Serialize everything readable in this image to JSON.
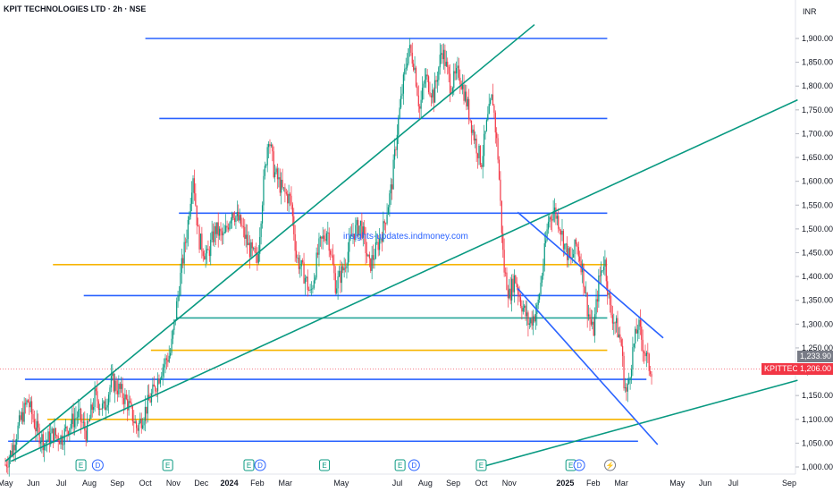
{
  "header": {
    "title": "KPIT TECHNOLOGIES LTD · 2h · NSE",
    "watermark": "insights-updates.indmoney.com"
  },
  "chart_data": {
    "type": "candlestick",
    "currency": "INR",
    "y_ticks": [
      "1,900.00",
      "1,850.00",
      "1,800.00",
      "1,750.00",
      "1,700.00",
      "1,650.00",
      "1,600.00",
      "1,550.00",
      "1,500.00",
      "1,450.00",
      "1,400.00",
      "1,350.00",
      "1,300.00",
      "1,250.00",
      "1,200.00",
      "1,150.00",
      "1,100.00",
      "1,050.00",
      "1,000.00"
    ],
    "y_range": [
      993,
      1930
    ],
    "x_ticks": [
      {
        "label": "May",
        "x": 0.0,
        "bold": false
      },
      {
        "label": "Jun",
        "x": 1.0,
        "bold": false
      },
      {
        "label": "Jul",
        "x": 2.0,
        "bold": false
      },
      {
        "label": "Aug",
        "x": 3.0,
        "bold": false
      },
      {
        "label": "Sep",
        "x": 4.0,
        "bold": false
      },
      {
        "label": "Oct",
        "x": 5.0,
        "bold": false
      },
      {
        "label": "Nov",
        "x": 6.0,
        "bold": false
      },
      {
        "label": "Dec",
        "x": 7.0,
        "bold": false
      },
      {
        "label": "2024",
        "x": 8.0,
        "bold": true
      },
      {
        "label": "Feb",
        "x": 9.0,
        "bold": false
      },
      {
        "label": "Mar",
        "x": 10.0,
        "bold": false
      },
      {
        "label": "May",
        "x": 12.0,
        "bold": false
      },
      {
        "label": "Jul",
        "x": 14.0,
        "bold": false
      },
      {
        "label": "Aug",
        "x": 15.0,
        "bold": false
      },
      {
        "label": "Sep",
        "x": 16.0,
        "bold": false
      },
      {
        "label": "Oct",
        "x": 17.0,
        "bold": false
      },
      {
        "label": "Nov",
        "x": 18.0,
        "bold": false
      },
      {
        "label": "2025",
        "x": 20.0,
        "bold": true
      },
      {
        "label": "Feb",
        "x": 21.0,
        "bold": false
      },
      {
        "label": "Mar",
        "x": 22.0,
        "bold": false
      },
      {
        "label": "May",
        "x": 24.0,
        "bold": false
      },
      {
        "label": "Jun",
        "x": 25.0,
        "bold": false
      },
      {
        "label": "Jul",
        "x": 26.0,
        "bold": false
      },
      {
        "label": "Sep",
        "x": 28.0,
        "bold": false
      }
    ],
    "x_range": [
      0,
      28.3
    ],
    "price_path": [
      [
        0.0,
        1005
      ],
      [
        0.2,
        1030
      ],
      [
        0.5,
        1090
      ],
      [
        0.8,
        1140
      ],
      [
        1.1,
        1080
      ],
      [
        1.4,
        1050
      ],
      [
        1.7,
        1070
      ],
      [
        2.0,
        1060
      ],
      [
        2.3,
        1090
      ],
      [
        2.6,
        1110
      ],
      [
        2.9,
        1070
      ],
      [
        3.2,
        1150
      ],
      [
        3.5,
        1120
      ],
      [
        3.8,
        1180
      ],
      [
        4.1,
        1160
      ],
      [
        4.4,
        1130
      ],
      [
        4.7,
        1080
      ],
      [
        5.0,
        1120
      ],
      [
        5.3,
        1160
      ],
      [
        5.6,
        1210
      ],
      [
        5.9,
        1240
      ],
      [
        6.1,
        1330
      ],
      [
        6.3,
        1420
      ],
      [
        6.5,
        1500
      ],
      [
        6.7,
        1620
      ],
      [
        6.9,
        1480
      ],
      [
        7.2,
        1440
      ],
      [
        7.5,
        1500
      ],
      [
        7.8,
        1480
      ],
      [
        8.1,
        1540
      ],
      [
        8.4,
        1510
      ],
      [
        8.7,
        1460
      ],
      [
        9.0,
        1430
      ],
      [
        9.2,
        1580
      ],
      [
        9.4,
        1700
      ],
      [
        9.6,
        1620
      ],
      [
        9.9,
        1580
      ],
      [
        10.2,
        1560
      ],
      [
        10.4,
        1440
      ],
      [
        10.7,
        1400
      ],
      [
        10.9,
        1360
      ],
      [
        11.2,
        1460
      ],
      [
        11.5,
        1500
      ],
      [
        11.8,
        1380
      ],
      [
        12.1,
        1420
      ],
      [
        12.4,
        1490
      ],
      [
        12.7,
        1510
      ],
      [
        13.0,
        1420
      ],
      [
        13.2,
        1450
      ],
      [
        13.5,
        1500
      ],
      [
        13.8,
        1590
      ],
      [
        14.0,
        1710
      ],
      [
        14.2,
        1800
      ],
      [
        14.4,
        1880
      ],
      [
        14.6,
        1850
      ],
      [
        14.8,
        1750
      ],
      [
        15.0,
        1820
      ],
      [
        15.3,
        1780
      ],
      [
        15.6,
        1880
      ],
      [
        15.9,
        1800
      ],
      [
        16.2,
        1830
      ],
      [
        16.5,
        1760
      ],
      [
        16.8,
        1680
      ],
      [
        17.0,
        1640
      ],
      [
        17.2,
        1720
      ],
      [
        17.4,
        1780
      ],
      [
        17.6,
        1650
      ],
      [
        17.8,
        1420
      ],
      [
        18.0,
        1360
      ],
      [
        18.2,
        1400
      ],
      [
        18.4,
        1350
      ],
      [
        18.7,
        1300
      ],
      [
        19.0,
        1330
      ],
      [
        19.2,
        1420
      ],
      [
        19.4,
        1520
      ],
      [
        19.6,
        1540
      ],
      [
        19.8,
        1510
      ],
      [
        20.0,
        1460
      ],
      [
        20.2,
        1430
      ],
      [
        20.4,
        1470
      ],
      [
        20.6,
        1420
      ],
      [
        20.8,
        1330
      ],
      [
        21.0,
        1280
      ],
      [
        21.2,
        1390
      ],
      [
        21.4,
        1440
      ],
      [
        21.6,
        1330
      ],
      [
        21.8,
        1300
      ],
      [
        22.0,
        1260
      ],
      [
        22.1,
        1180
      ],
      [
        22.2,
        1150
      ],
      [
        22.4,
        1240
      ],
      [
        22.6,
        1300
      ],
      [
        22.8,
        1250
      ],
      [
        23.0,
        1210
      ],
      [
        23.1,
        1206
      ]
    ],
    "horizontal_lines": [
      {
        "color": "#2962ff",
        "price": 1900,
        "x1": 5.0,
        "x2": 21.5
      },
      {
        "color": "#2962ff",
        "price": 1732,
        "x1": 5.5,
        "x2": 21.5
      },
      {
        "color": "#2962ff",
        "price": 1533,
        "x1": 6.2,
        "x2": 21.5
      },
      {
        "color": "#2962ff",
        "price": 1360,
        "x1": 2.8,
        "x2": 21.5
      },
      {
        "color": "#2962ff",
        "price": 1184,
        "x1": 0.7,
        "x2": 22.9
      },
      {
        "color": "#2962ff",
        "price": 1054,
        "x1": 0.1,
        "x2": 22.6
      },
      {
        "color": "#f7b500",
        "price": 1425,
        "x1": 1.7,
        "x2": 21.5
      },
      {
        "color": "#f7b500",
        "price": 1245,
        "x1": 5.2,
        "x2": 21.5
      },
      {
        "color": "#f7b500",
        "price": 1100,
        "x1": 1.5,
        "x2": 22.5
      },
      {
        "color": "#26a69a",
        "price": 1313,
        "x1": 6.1,
        "x2": 21.5
      }
    ],
    "trend_lines": [
      {
        "color": "#089981",
        "p1": [
          0.0,
          1012
        ],
        "p2": [
          18.9,
          1929
        ]
      },
      {
        "color": "#089981",
        "p1": [
          0.2,
          1012
        ],
        "p2": [
          28.3,
          1771
        ]
      },
      {
        "color": "#089981",
        "p1": [
          17.0,
          1000
        ],
        "p2": [
          28.3,
          1182
        ]
      },
      {
        "color": "#2962ff",
        "p1": [
          18.3,
          1535
        ],
        "p2": [
          23.5,
          1271
        ]
      },
      {
        "color": "#2962ff",
        "p1": [
          18.3,
          1375
        ],
        "p2": [
          23.3,
          1047
        ]
      }
    ],
    "events": [
      {
        "label": "E",
        "x": 2.7,
        "type": "earnings"
      },
      {
        "label": "D",
        "x": 3.3,
        "type": "dividend"
      },
      {
        "label": "E",
        "x": 5.8,
        "type": "earnings"
      },
      {
        "label": "E",
        "x": 8.7,
        "type": "earnings"
      },
      {
        "label": "D",
        "x": 9.1,
        "type": "dividend"
      },
      {
        "label": "E",
        "x": 11.4,
        "type": "earnings"
      },
      {
        "label": "E",
        "x": 14.1,
        "type": "earnings"
      },
      {
        "label": "D",
        "x": 14.6,
        "type": "dividend"
      },
      {
        "label": "E",
        "x": 17.0,
        "type": "earnings"
      },
      {
        "label": "E",
        "x": 20.2,
        "type": "earnings"
      },
      {
        "label": "D",
        "x": 20.5,
        "type": "dividend"
      },
      {
        "label": "⚡",
        "x": 21.6,
        "type": "split"
      }
    ],
    "price_labels": [
      {
        "text": "1,233.90",
        "price": 1233.9,
        "color": "#787b86"
      },
      {
        "text": "1,206.00",
        "price": 1206,
        "color": "#f23645"
      }
    ],
    "symbol_tag": {
      "text": "KPITTECH",
      "price": 1206,
      "color": "#f23645"
    }
  }
}
